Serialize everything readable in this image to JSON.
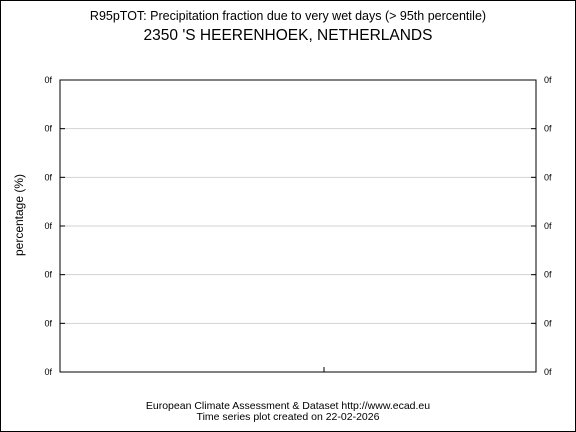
{
  "chart_data": {
    "type": "line",
    "title": "R95pTOT: Precipitation fraction due to very wet days (> 95th percentile)",
    "subtitle": "2350 'S HEERENHOEK, NETHERLANDS",
    "xlabel": "",
    "ylabel": "percentage (%)",
    "y_tick_labels": [
      "0f",
      "0f",
      "0f",
      "0f",
      "0f",
      "0f",
      "0f"
    ],
    "x_tick_labels": [],
    "series": [],
    "grid": true
  },
  "footer": {
    "line1": "European Climate Assessment & Dataset  http://www.ecad.eu",
    "line2": "Time series plot created on 22-02-2026"
  },
  "colors": {
    "frame": "#000000",
    "grid": "#d3d3d3",
    "background": "#ffffff"
  }
}
